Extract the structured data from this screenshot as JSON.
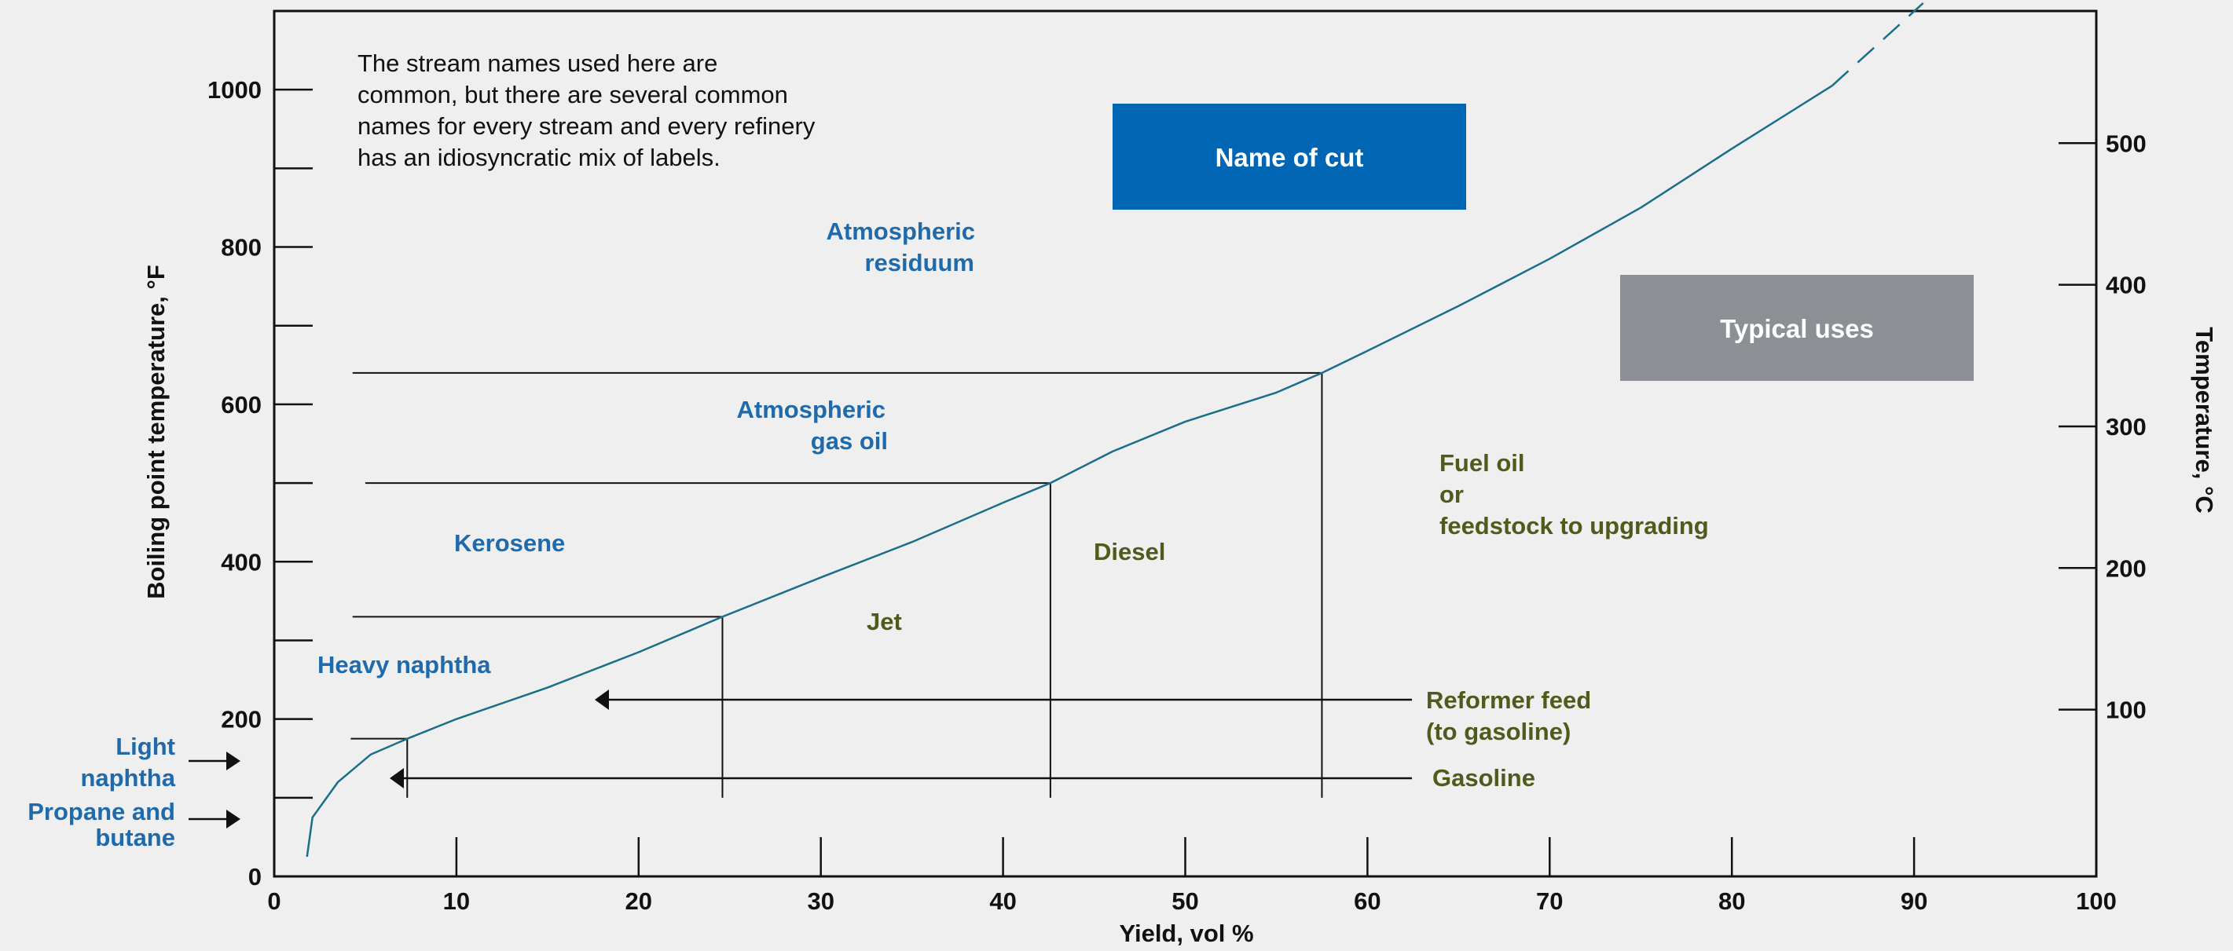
{
  "chart_data": {
    "type": "line",
    "xlabel": "Yield, vol %",
    "ylabel": "Boiling point temperature, °F",
    "y2label": "Temperature, °C",
    "xlim": [
      0,
      100
    ],
    "ylim": [
      0,
      1100
    ],
    "y2lim_c": [
      -17.8,
      593.3
    ],
    "x_ticks": [
      0,
      10,
      20,
      30,
      40,
      50,
      60,
      70,
      80,
      90,
      100
    ],
    "y_ticks": [
      0,
      200,
      400,
      600,
      800,
      1000
    ],
    "y_minor_ticks": [
      100,
      300,
      500,
      700,
      900
    ],
    "y2_ticks": [
      100,
      200,
      300,
      400,
      500
    ],
    "grid": false,
    "series": [
      {
        "points": [
          [
            1.8,
            25
          ],
          [
            2.1,
            75
          ],
          [
            3.5,
            120
          ],
          [
            5.3,
            155
          ],
          [
            7.3,
            175
          ],
          [
            10,
            200
          ],
          [
            15,
            240
          ],
          [
            20,
            285
          ],
          [
            24.6,
            330
          ],
          [
            30,
            380
          ],
          [
            35,
            425
          ],
          [
            40,
            475
          ],
          [
            42.6,
            500
          ],
          [
            46,
            540
          ],
          [
            50,
            578
          ],
          [
            55,
            615
          ],
          [
            57.5,
            640
          ],
          [
            60,
            668
          ],
          [
            65,
            725
          ],
          [
            70,
            785
          ],
          [
            75,
            850
          ],
          [
            80,
            925
          ],
          [
            85.5,
            1005
          ]
        ],
        "dashed_extension": [
          [
            85.5,
            1005
          ],
          [
            90.5,
            1110
          ]
        ]
      }
    ],
    "cut_lines": [
      {
        "x": 7.3,
        "y": 175,
        "line_from_x": 4.2
      },
      {
        "x": 24.6,
        "y": 330,
        "line_from_x": 4.3
      },
      {
        "x": 42.6,
        "y": 500,
        "line_from_x": 5
      },
      {
        "x": 57.5,
        "y": 640,
        "line_from_x": 4.3
      }
    ],
    "legend": [
      {
        "label": "Name of cut",
        "color": "#0066b3"
      },
      {
        "label": "Typical uses",
        "color": "#8c8f93"
      }
    ],
    "note": [
      "The stream names used here are",
      "common, but there are several common",
      "names for every stream and every refinery",
      "has an idiosyncratic mix of labels."
    ],
    "cut_names": [
      {
        "lines": [
          "Atmospheric",
          "residuum"
        ]
      },
      {
        "lines": [
          "Atmospheric",
          "gas oil"
        ]
      },
      {
        "lines": [
          "Kerosene"
        ]
      },
      {
        "lines": [
          "Heavy naphtha"
        ]
      },
      {
        "lines": [
          "Light",
          "naphtha"
        ]
      },
      {
        "lines": [
          "Propane and",
          "butane"
        ]
      }
    ],
    "uses": [
      {
        "lines": [
          "Fuel oil",
          "or",
          "feedstock to upgrading"
        ]
      },
      {
        "lines": [
          "Diesel"
        ]
      },
      {
        "lines": [
          "Jet"
        ]
      },
      {
        "lines": [
          "Reformer feed",
          "(to gasoline)"
        ]
      },
      {
        "lines": [
          "Gasoline"
        ]
      }
    ],
    "colors": {
      "curve": "#1a6e8a",
      "cut_text": "#1f6aad",
      "use_text": "#4f5a1c",
      "legend_cut": "#0066b3",
      "legend_use": "#8c8f93"
    }
  }
}
